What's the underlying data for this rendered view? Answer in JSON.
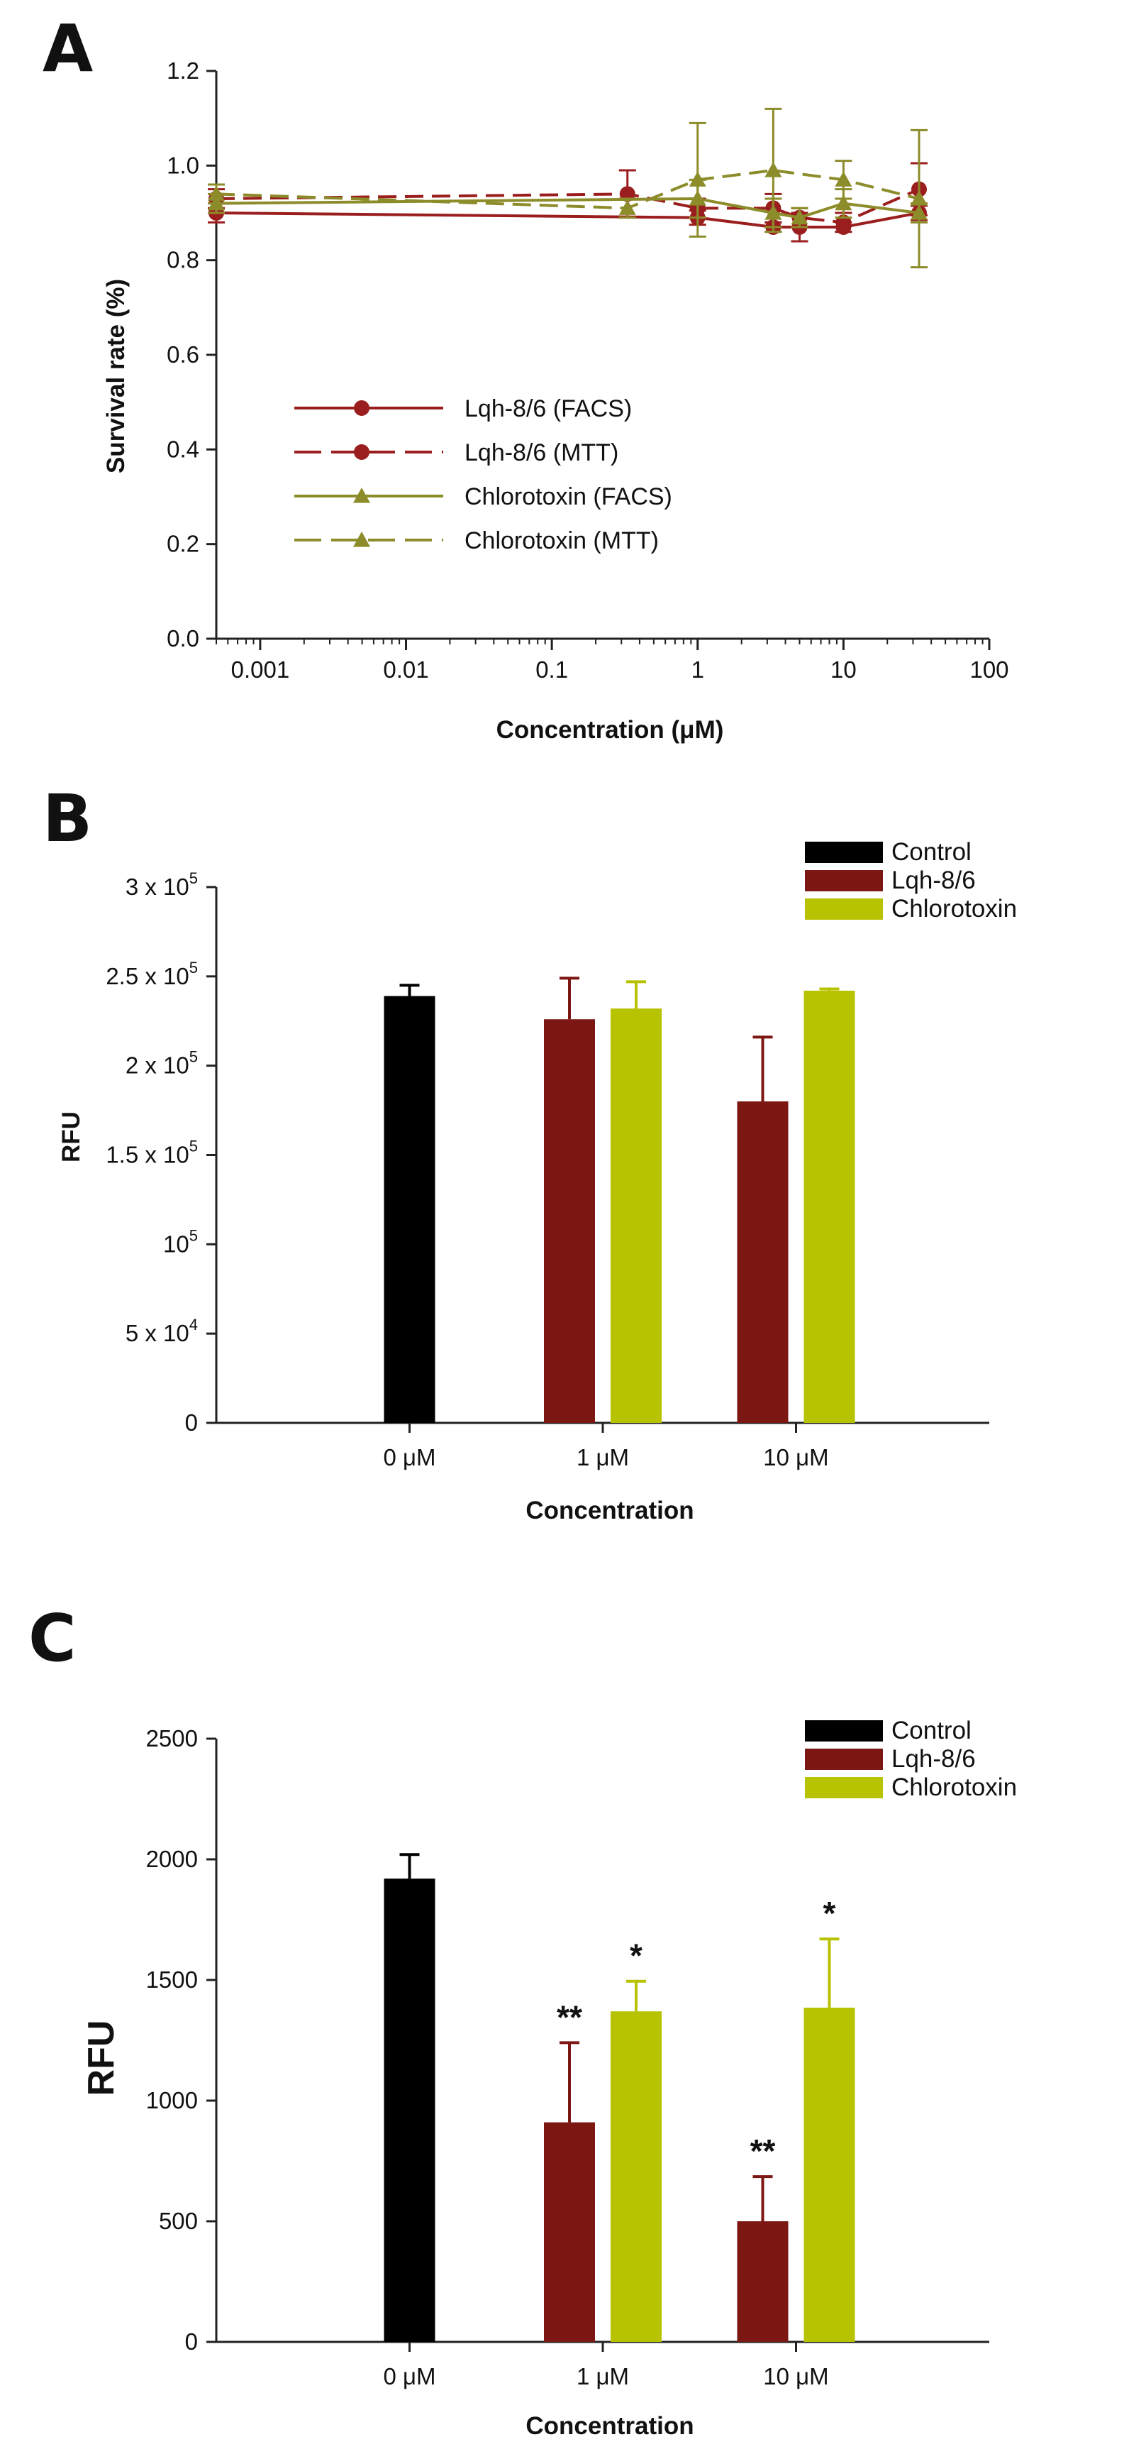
{
  "chart_data": [
    {
      "panel": "A",
      "type": "line",
      "xscale": "log",
      "xlabel": "Concentration (μM)",
      "ylabel": "Survival rate (%)",
      "ylim": [
        0.0,
        1.2
      ],
      "xlim": [
        0.0005,
        100
      ],
      "xticks": [
        "0.001",
        "0.01",
        "0.1",
        "1",
        "10",
        "100"
      ],
      "xtick_values": [
        0.001,
        0.01,
        0.1,
        1,
        10,
        100
      ],
      "yticks": [
        "0.0",
        "0.2",
        "0.4",
        "0.6",
        "0.8",
        "1.0",
        "1.2"
      ],
      "ytick_values": [
        0,
        0.2,
        0.4,
        0.6,
        0.8,
        1.0,
        1.2
      ],
      "legend_position": "lower-left",
      "series": [
        {
          "name": "Lqh-8/6 (FACS)",
          "color": "#9b1e1e",
          "dash": "solid",
          "marker": "circle",
          "x": [
            0.0005,
            1,
            3.3,
            5,
            10,
            33
          ],
          "y": [
            0.9,
            0.89,
            0.87,
            0.87,
            0.87,
            0.9
          ],
          "err": [
            0.02,
            0.015,
            0.01,
            0.03,
            0.01,
            0.015
          ]
        },
        {
          "name": "Lqh-8/6 (MTT)",
          "color": "#9b1e1e",
          "dash": "dashed",
          "marker": "circle",
          "x": [
            0.0005,
            0.33,
            1,
            3.3,
            5,
            10,
            33
          ],
          "y": [
            0.93,
            0.94,
            0.91,
            0.91,
            0.89,
            0.88,
            0.95
          ],
          "err": [
            0.02,
            0.05,
            0.02,
            0.03,
            0.02,
            0.02,
            0.055
          ]
        },
        {
          "name": "Chlorotoxin (FACS)",
          "color": "#8c8c2a",
          "dash": "solid",
          "marker": "triangle",
          "x": [
            0.0005,
            1,
            3.3,
            5,
            10,
            33
          ],
          "y": [
            0.92,
            0.93,
            0.9,
            0.89,
            0.92,
            0.9
          ],
          "err": [
            0.02,
            0.04,
            0.03,
            0.02,
            0.03,
            0.02
          ]
        },
        {
          "name": "Chlorotoxin (MTT)",
          "color": "#8c8c2a",
          "dash": "dashed",
          "marker": "triangle",
          "x": [
            0.0005,
            0.33,
            1,
            3.3,
            10,
            33
          ],
          "y": [
            0.94,
            0.91,
            0.97,
            0.99,
            0.97,
            0.93
          ],
          "err": [
            0.02,
            0.02,
            0.12,
            0.13,
            0.04,
            0.145
          ]
        }
      ]
    },
    {
      "panel": "B",
      "type": "bar",
      "xlabel": "Concentration",
      "ylabel": "RFU",
      "ylim": [
        0,
        300000
      ],
      "categories": [
        "0 μM",
        "1 μM",
        "10 μM"
      ],
      "ytick_values": [
        0,
        50000,
        100000,
        150000,
        200000,
        250000,
        300000
      ],
      "ytick_labels": [
        {
          "base": "0",
          "exp": ""
        },
        {
          "base": "5 x 10",
          "exp": "4"
        },
        {
          "base": "10",
          "exp": "5"
        },
        {
          "base": "1.5 x 10",
          "exp": "5"
        },
        {
          "base": "2 x 10",
          "exp": "5"
        },
        {
          "base": "2.5 x 10",
          "exp": "5"
        },
        {
          "base": "3 x 10",
          "exp": "5"
        }
      ],
      "legend_position": "top-right",
      "series": [
        {
          "name": "Control",
          "color": "#000000",
          "values": [
            239000,
            null,
            null
          ],
          "errors": [
            6000,
            null,
            null
          ]
        },
        {
          "name": "Lqh-8/6",
          "color": "#7d1713",
          "values": [
            null,
            226000,
            180000
          ],
          "errors": [
            null,
            23000,
            36000
          ]
        },
        {
          "name": "Chlorotoxin",
          "color": "#b7c200",
          "values": [
            null,
            232000,
            242000
          ],
          "errors": [
            null,
            15000,
            1000
          ]
        }
      ]
    },
    {
      "panel": "C",
      "type": "bar",
      "xlabel": "Concentration",
      "ylabel": "RFU",
      "ylim": [
        0,
        2500
      ],
      "categories": [
        "0 μM",
        "1 μM",
        "10 μM"
      ],
      "ytick_values": [
        0,
        500,
        1000,
        1500,
        2000,
        2500
      ],
      "ytick_labels": [
        {
          "base": "0",
          "exp": ""
        },
        {
          "base": "500",
          "exp": ""
        },
        {
          "base": "1000",
          "exp": ""
        },
        {
          "base": "1500",
          "exp": ""
        },
        {
          "base": "2000",
          "exp": ""
        },
        {
          "base": "2500",
          "exp": ""
        }
      ],
      "legend_position": "top-right",
      "series": [
        {
          "name": "Control",
          "color": "#000000",
          "values": [
            1920,
            null,
            null
          ],
          "errors": [
            100,
            null,
            null
          ],
          "sig": [
            null,
            null,
            null
          ]
        },
        {
          "name": "Lqh-8/6",
          "color": "#7d1713",
          "values": [
            null,
            910,
            500
          ],
          "errors": [
            null,
            330,
            185
          ],
          "sig": [
            null,
            "**",
            "**"
          ]
        },
        {
          "name": "Chlorotoxin",
          "color": "#b7c200",
          "values": [
            null,
            1370,
            1385
          ],
          "errors": [
            null,
            125,
            285
          ],
          "sig": [
            null,
            "*",
            "*"
          ]
        }
      ]
    }
  ]
}
